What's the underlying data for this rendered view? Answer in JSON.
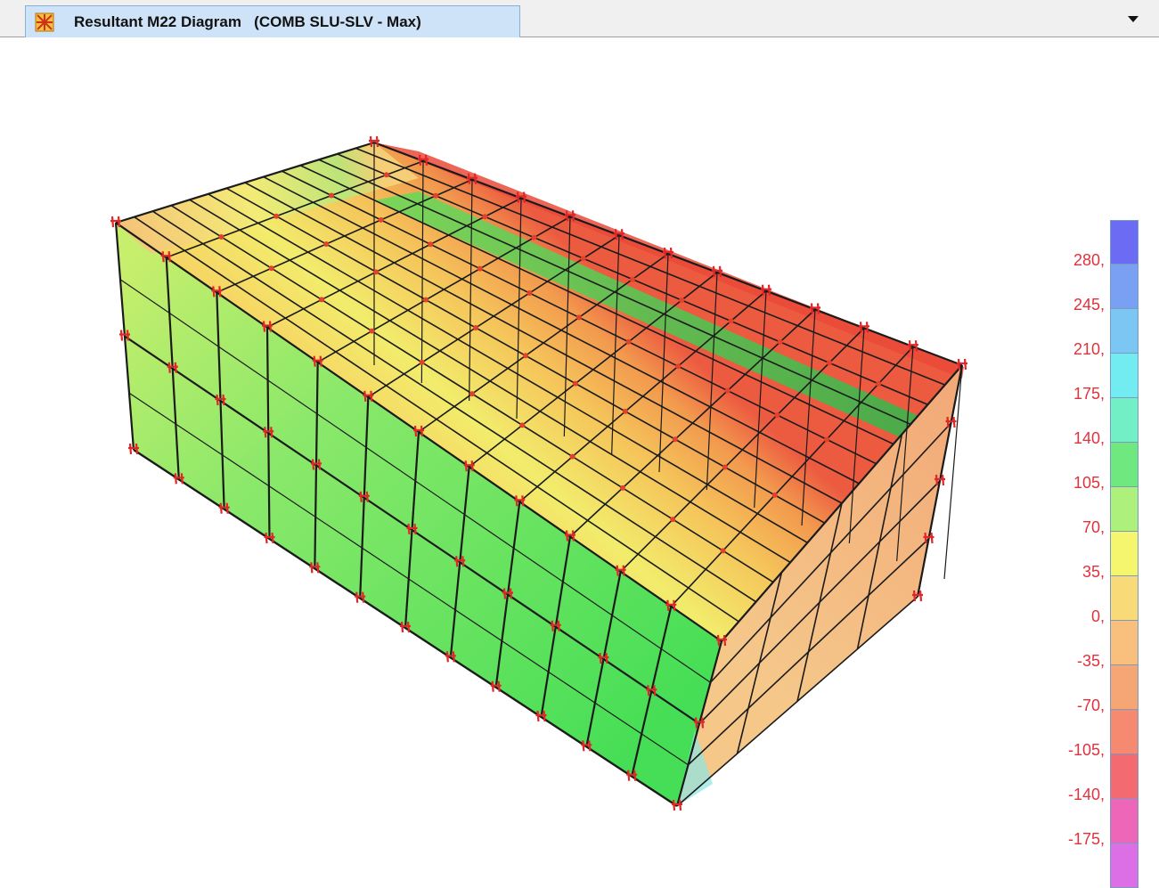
{
  "window": {
    "tab_title": "Resultant M22 Diagram   (COMB SLU-SLV - Max)",
    "tab_icon": "sap-structure-icon",
    "dropdown_icon": "caret-down-icon"
  },
  "legend": {
    "labels": [
      "280,",
      "245,",
      "210,",
      "175,",
      "140,",
      "105,",
      "70,",
      "35,",
      "0,",
      "-35,",
      "-70,",
      "-105,",
      "-140,",
      "-175,"
    ],
    "colors": [
      "#6b6cf3",
      "#7aa0f3",
      "#7cc6f3",
      "#72ecf0",
      "#72efc4",
      "#6fe880",
      "#aef07c",
      "#f6f66e",
      "#f8da78",
      "#f8c07c",
      "#f5a674",
      "#f58a70",
      "#f36a70",
      "#ee66b8",
      "#dc6fe6"
    ]
  },
  "model": {
    "description_colors": {
      "front_face": "#56e05a",
      "roof": "#f5c860",
      "back_edge": "#ee5040",
      "side_face": "#f5c890",
      "frame_lines": "#1a1a1a",
      "restraints": "#e02020"
    }
  }
}
